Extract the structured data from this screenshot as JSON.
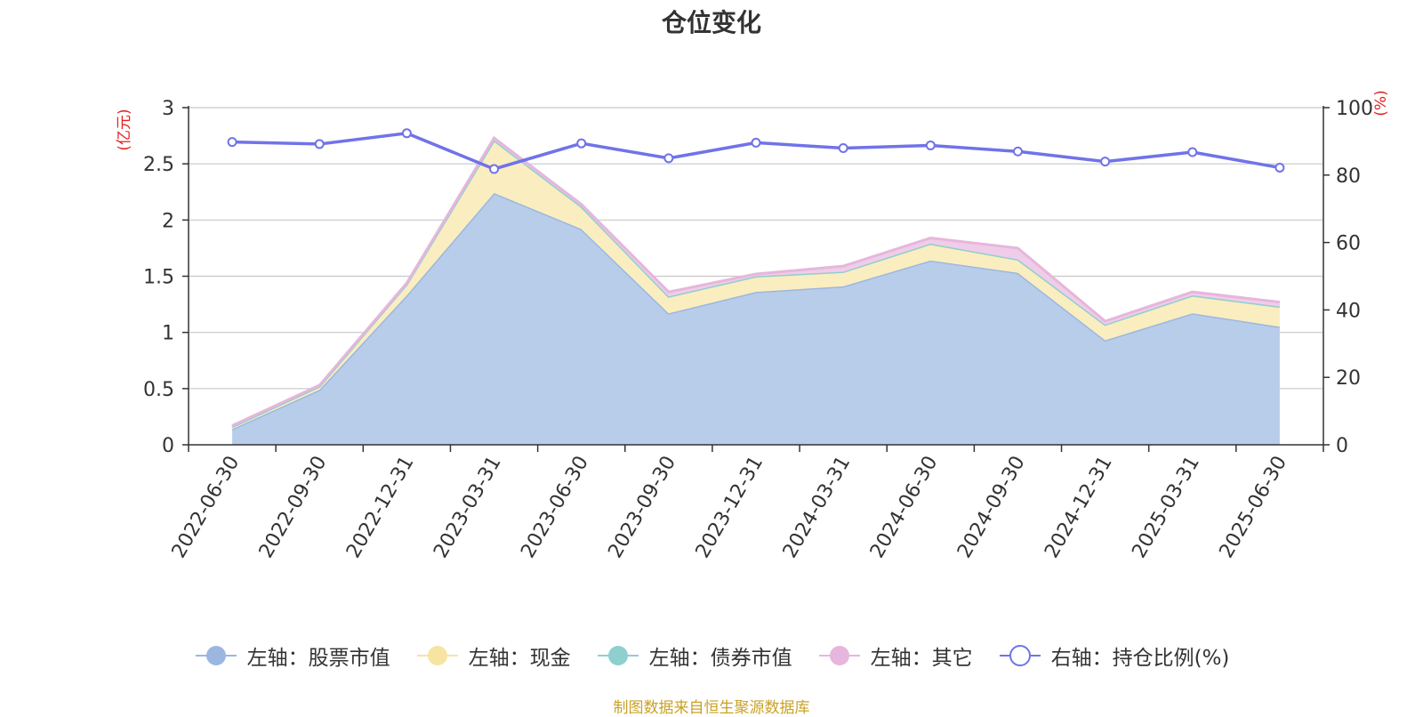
{
  "chart_data": {
    "type": "area",
    "title": "仓位变化",
    "categories": [
      "2022-06-30",
      "2022-09-30",
      "2022-12-31",
      "2023-03-31",
      "2023-06-30",
      "2023-09-30",
      "2023-12-31",
      "2024-03-31",
      "2024-06-30",
      "2024-09-30",
      "2024-12-31",
      "2025-03-31",
      "2025-06-30"
    ],
    "left_axis": {
      "unit": "(亿元)",
      "ylim": [
        0,
        3
      ],
      "ticks": [
        "0",
        "0.5",
        "1",
        "1.5",
        "2",
        "2.5",
        "3"
      ]
    },
    "right_axis": {
      "unit": "(%)",
      "ylim": [
        0,
        100
      ],
      "ticks": [
        "0",
        "20",
        "40",
        "60",
        "80",
        "100"
      ]
    },
    "grid": true,
    "stacked": true,
    "series": [
      {
        "name": "左轴：股票市值",
        "axis": "left",
        "color": "#9bb7e0",
        "fill": "#b8cdea",
        "values": [
          0.14,
          0.49,
          1.33,
          2.24,
          1.92,
          1.17,
          1.36,
          1.41,
          1.64,
          1.53,
          0.93,
          1.17,
          1.05
        ]
      },
      {
        "name": "左轴：现金",
        "axis": "left",
        "color": "#f7e4a0",
        "fill": "#faedc0",
        "values": [
          0.02,
          0.03,
          0.1,
          0.47,
          0.2,
          0.15,
          0.14,
          0.13,
          0.15,
          0.12,
          0.14,
          0.16,
          0.18
        ]
      },
      {
        "name": "左轴：债券市值",
        "axis": "left",
        "color": "#8ecfd0",
        "fill": "#c2e6e6",
        "values": [
          0,
          0,
          0,
          0,
          0,
          0,
          0,
          0,
          0,
          0,
          0,
          0,
          0
        ]
      },
      {
        "name": "左轴：其它",
        "axis": "left",
        "color": "#e6b6dc",
        "fill": "#efcde8",
        "values": [
          0.01,
          0.01,
          0.01,
          0.02,
          0.02,
          0.04,
          0.02,
          0.05,
          0.05,
          0.1,
          0.03,
          0.03,
          0.04
        ]
      },
      {
        "name": "右轴：持仓比例(%)",
        "axis": "right",
        "color": "#7073e8",
        "type": "line",
        "values": [
          89.8,
          89.2,
          92.4,
          81.8,
          89.4,
          85.0,
          89.6,
          88.0,
          88.8,
          87.0,
          84.0,
          86.8,
          82.2
        ]
      }
    ],
    "legend_position": "bottom"
  },
  "footer": {
    "source": "制图数据来自恒生聚源数据库"
  }
}
